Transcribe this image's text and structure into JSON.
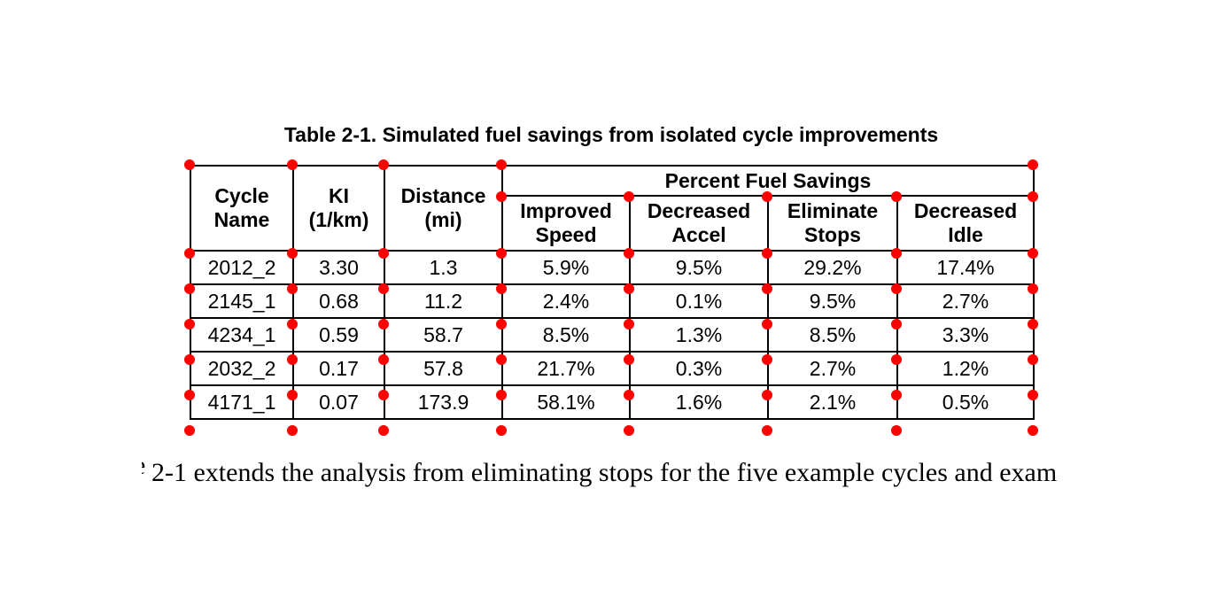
{
  "caption": "Table 2-1. Simulated fuel savings from isolated cycle improvements",
  "table": {
    "group_header": "Percent Fuel Savings",
    "headers": [
      {
        "line1": "Cycle",
        "line2": "Name"
      },
      {
        "line1": "KI",
        "line2": "(1/km)"
      },
      {
        "line1": "Distance",
        "line2": "(mi)"
      },
      {
        "line1": "Improved",
        "line2": "Speed"
      },
      {
        "line1": "Decreased",
        "line2": "Accel"
      },
      {
        "line1": "Eliminate",
        "line2": "Stops"
      },
      {
        "line1": "Decreased",
        "line2": "Idle"
      }
    ],
    "rows": [
      [
        "2012_2",
        "3.30",
        "1.3",
        "5.9%",
        "9.5%",
        "29.2%",
        "17.4%"
      ],
      [
        "2145_1",
        "0.68",
        "11.2",
        "2.4%",
        "0.1%",
        "9.5%",
        "2.7%"
      ],
      [
        "4234_1",
        "0.59",
        "58.7",
        "8.5%",
        "1.3%",
        "8.5%",
        "3.3%"
      ],
      [
        "2032_2",
        "0.17",
        "57.8",
        "21.7%",
        "0.3%",
        "2.7%",
        "1.2%"
      ],
      [
        "4171_1",
        "0.07",
        "173.9",
        "58.1%",
        "1.6%",
        "2.1%",
        "0.5%"
      ]
    ]
  },
  "body_text": {
    "fragment": "e",
    "text": "2-1 extends the analysis from eliminating stops for the five example cycles and exam"
  },
  "annotation": {
    "marker_color": "#ff0000"
  }
}
